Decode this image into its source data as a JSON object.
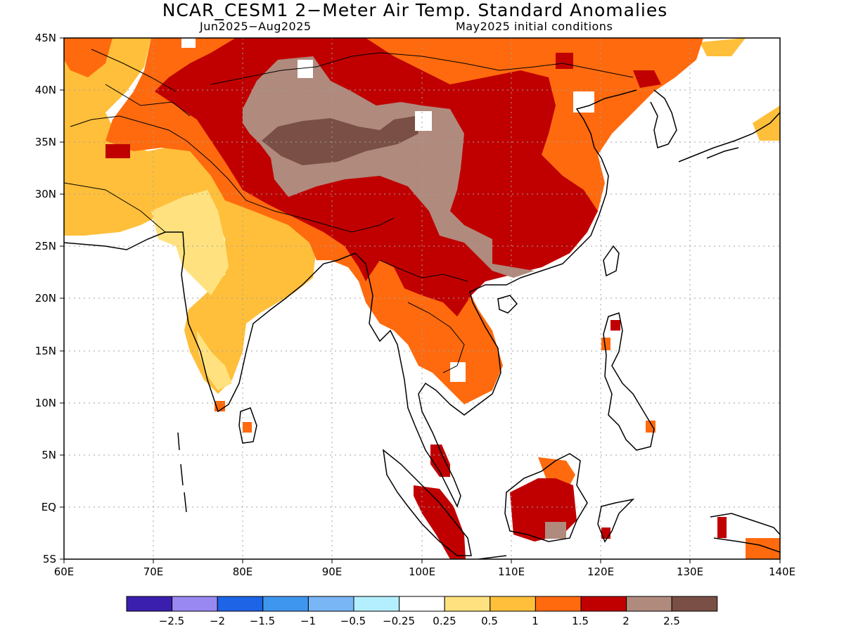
{
  "title": "NCAR_CESM1 2−Meter Air Temp. Standard Anomalies",
  "period": "Jun2025−Aug2025",
  "initial_conditions": "May2025 initial conditions",
  "map": {
    "lon_range": [
      60,
      140
    ],
    "lat_range": [
      -5,
      45
    ],
    "lon_ticks": [
      "60E",
      "70E",
      "80E",
      "90E",
      "100E",
      "110E",
      "120E",
      "130E",
      "140E"
    ],
    "lat_ticks": [
      "45N",
      "40N",
      "35N",
      "30N",
      "25N",
      "20N",
      "15N",
      "10N",
      "5N",
      "EQ",
      "5S"
    ]
  },
  "legend": {
    "colors": [
      "#3a1fae",
      "#9a88f2",
      "#1d64e6",
      "#3f96ef",
      "#79b6f5",
      "#b3efff",
      "#ffffff",
      "#ffe27f",
      "#ffbf3a",
      "#ff6a0e",
      "#c00000",
      "#b08a7d",
      "#7a4f45"
    ],
    "labels": [
      "−2.5",
      "−2",
      "−1.5",
      "−1",
      "−0.5",
      "−0.25",
      "0.25",
      "0.5",
      "1",
      "1.5",
      "2",
      "2.5"
    ]
  },
  "anomaly_regions": [
    {
      "name": "northern China / Mongolia",
      "level": "1.5"
    },
    {
      "name": "Tibetan Plateau",
      "level": "2"
    },
    {
      "name": "Tarim / Qaidam basins",
      "level": "2.5"
    },
    {
      "name": "central Qaidam core",
      "level": ">2.5"
    },
    {
      "name": "southern China",
      "level": "2"
    },
    {
      "name": "Indochina",
      "level": "1.5"
    },
    {
      "name": "Afghanistan / Iran",
      "level": "1"
    },
    {
      "name": "northern India",
      "level": "0.5"
    },
    {
      "name": "Borneo",
      "level": "2"
    },
    {
      "name": "Sumatra",
      "level": "2"
    }
  ]
}
